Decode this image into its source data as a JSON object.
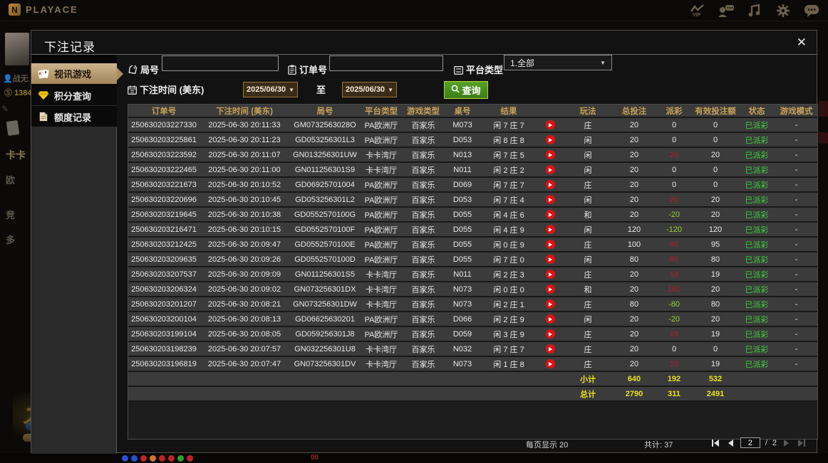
{
  "topbar": {
    "brand": "PLAYACE",
    "brand_mark": "N",
    "icons": [
      "vip-icon",
      "customer-service-icon",
      "music-icon",
      "settings-gear-icon",
      "chat-icon"
    ]
  },
  "background": {
    "username": "战无",
    "balance": "1384",
    "nav_labels": [
      "卡卡",
      "欧",
      "竞",
      "多"
    ],
    "promo_char": "大",
    "badge": "00",
    "chip_colors": [
      "#2b4fd4",
      "#2b4fd4",
      "#c42222",
      "#d4752b",
      "#c42222",
      "#c42222",
      "#2ba32b",
      "#c42222"
    ]
  },
  "modal": {
    "title": "下注记录",
    "close_label": "✕",
    "sidebar": [
      {
        "label": "视讯游戏",
        "active": true
      },
      {
        "label": "积分查询",
        "active": false
      },
      {
        "label": "额度记录",
        "active": false
      }
    ],
    "filters": {
      "round_label": "局号",
      "round_value": "",
      "order_label": "订单号",
      "order_value": "",
      "platform_label": "平台类型",
      "platform_value": "1.全部",
      "time_label": "下注时间 (美东)",
      "date_from": "2025/06/30",
      "to_label": "至",
      "date_to": "2025/06/30",
      "search_label": "查询"
    },
    "table": {
      "headers": [
        "订单号",
        "下注时间 (美东)",
        "局号",
        "平台类型",
        "游戏类型",
        "桌号",
        "结果",
        "",
        "玩法",
        "总投注",
        "派彩",
        "有效投注额",
        "状态",
        "游戏模式"
      ],
      "rows": [
        {
          "order": "250630203227330",
          "time": "2025-06-30 20:11:33",
          "round": "GM0732563028O",
          "platform": "PA欧洲厅",
          "game": "百家乐",
          "table": "M073",
          "result": "闲 7 庄 7",
          "bet": "庄",
          "total": "20",
          "payout": "0",
          "pc": "w",
          "valid": "0",
          "status": "已派彩",
          "mode": "-"
        },
        {
          "order": "250630203225861",
          "time": "2025-06-30 20:11:23",
          "round": "GD053256301L3",
          "platform": "PA欧洲厅",
          "game": "百家乐",
          "table": "D053",
          "result": "闲 8 庄 8",
          "bet": "闲",
          "total": "20",
          "payout": "0",
          "pc": "w",
          "valid": "0",
          "status": "已派彩",
          "mode": "-"
        },
        {
          "order": "250630203223592",
          "time": "2025-06-30 20:11:07",
          "round": "GN013256301UW",
          "platform": "卡卡湾厅",
          "game": "百家乐",
          "table": "N013",
          "result": "闲 7 庄 5",
          "bet": "闲",
          "total": "20",
          "payout": "20",
          "pc": "r",
          "valid": "20",
          "status": "已派彩",
          "mode": "-"
        },
        {
          "order": "250630203222465",
          "time": "2025-06-30 20:11:00",
          "round": "GN011256301S9",
          "platform": "卡卡湾厅",
          "game": "百家乐",
          "table": "N011",
          "result": "闲 2 庄 2",
          "bet": "闲",
          "total": "20",
          "payout": "0",
          "pc": "w",
          "valid": "0",
          "status": "已派彩",
          "mode": "-"
        },
        {
          "order": "250630203221673",
          "time": "2025-06-30 20:10:52",
          "round": "GD06925701004",
          "platform": "PA欧洲厅",
          "game": "百家乐",
          "table": "D069",
          "result": "闲 7 庄 7",
          "bet": "庄",
          "total": "20",
          "payout": "0",
          "pc": "w",
          "valid": "0",
          "status": "已派彩",
          "mode": "-"
        },
        {
          "order": "250630203220696",
          "time": "2025-06-30 20:10:45",
          "round": "GD053256301L2",
          "platform": "PA欧洲厅",
          "game": "百家乐",
          "table": "D053",
          "result": "闲 7 庄 4",
          "bet": "闲",
          "total": "20",
          "payout": "20",
          "pc": "r",
          "valid": "20",
          "status": "已派彩",
          "mode": "-"
        },
        {
          "order": "250630203219645",
          "time": "2025-06-30 20:10:38",
          "round": "GD0552570100G",
          "platform": "PA欧洲厅",
          "game": "百家乐",
          "table": "D055",
          "result": "闲 4 庄 6",
          "bet": "和",
          "total": "20",
          "payout": "-20",
          "pc": "g",
          "valid": "20",
          "status": "已派彩",
          "mode": "-"
        },
        {
          "order": "250630203216471",
          "time": "2025-06-30 20:10:15",
          "round": "GD0552570100F",
          "platform": "PA欧洲厅",
          "game": "百家乐",
          "table": "D055",
          "result": "闲 4 庄 9",
          "bet": "闲",
          "total": "120",
          "payout": "-120",
          "pc": "g",
          "valid": "120",
          "status": "已派彩",
          "mode": "-"
        },
        {
          "order": "250630203212425",
          "time": "2025-06-30 20:09:47",
          "round": "GD0552570100E",
          "platform": "PA欧洲厅",
          "game": "百家乐",
          "table": "D055",
          "result": "闲 0 庄 9",
          "bet": "庄",
          "total": "100",
          "payout": "95",
          "pc": "r",
          "valid": "95",
          "status": "已派彩",
          "mode": "-"
        },
        {
          "order": "250630203209635",
          "time": "2025-06-30 20:09:26",
          "round": "GD0552570100D",
          "platform": "PA欧洲厅",
          "game": "百家乐",
          "table": "D055",
          "result": "闲 7 庄 0",
          "bet": "闲",
          "total": "80",
          "payout": "80",
          "pc": "r",
          "valid": "80",
          "status": "已派彩",
          "mode": "-"
        },
        {
          "order": "250630203207537",
          "time": "2025-06-30 20:09:09",
          "round": "GN011256301S5",
          "platform": "卡卡湾厅",
          "game": "百家乐",
          "table": "N011",
          "result": "闲 2 庄 3",
          "bet": "庄",
          "total": "20",
          "payout": "19",
          "pc": "r",
          "valid": "19",
          "status": "已派彩",
          "mode": "-"
        },
        {
          "order": "250630203206324",
          "time": "2025-06-30 20:09:02",
          "round": "GN073256301DX",
          "platform": "卡卡湾厅",
          "game": "百家乐",
          "table": "N073",
          "result": "闲 0 庄 0",
          "bet": "和",
          "total": "20",
          "payout": "160",
          "pc": "r",
          "valid": "20",
          "status": "已派彩",
          "mode": "-"
        },
        {
          "order": "250630203201207",
          "time": "2025-06-30 20:08:21",
          "round": "GN073256301DW",
          "platform": "卡卡湾厅",
          "game": "百家乐",
          "table": "N073",
          "result": "闲 2 庄 1",
          "bet": "庄",
          "total": "80",
          "payout": "-80",
          "pc": "g",
          "valid": "80",
          "status": "已派彩",
          "mode": "-"
        },
        {
          "order": "250630203200104",
          "time": "2025-06-30 20:08:13",
          "round": "GD06625630201",
          "platform": "PA欧洲厅",
          "game": "百家乐",
          "table": "D066",
          "result": "闲 2 庄 9",
          "bet": "闲",
          "total": "20",
          "payout": "-20",
          "pc": "g",
          "valid": "20",
          "status": "已派彩",
          "mode": "-"
        },
        {
          "order": "250630203199104",
          "time": "2025-06-30 20:08:05",
          "round": "GD059256301J8",
          "platform": "PA欧洲厅",
          "game": "百家乐",
          "table": "D059",
          "result": "闲 3 庄 9",
          "bet": "庄",
          "total": "20",
          "payout": "19",
          "pc": "r",
          "valid": "19",
          "status": "已派彩",
          "mode": "-"
        },
        {
          "order": "250630203198239",
          "time": "2025-06-30 20:07:57",
          "round": "GN032256301U8",
          "platform": "卡卡湾厅",
          "game": "百家乐",
          "table": "N032",
          "result": "闲 7 庄 7",
          "bet": "庄",
          "total": "20",
          "payout": "0",
          "pc": "w",
          "valid": "0",
          "status": "已派彩",
          "mode": "-"
        },
        {
          "order": "250630203196819",
          "time": "2025-06-30 20:07:47",
          "round": "GN073256301DV",
          "platform": "卡卡湾厅",
          "game": "百家乐",
          "table": "N073",
          "result": "闲 1 庄 8",
          "bet": "庄",
          "total": "20",
          "payout": "19",
          "pc": "r",
          "valid": "19",
          "status": "已派彩",
          "mode": "-"
        }
      ],
      "subtotal": {
        "label": "小计",
        "total": "640",
        "payout": "192",
        "valid": "532"
      },
      "grandtotal": {
        "label": "总计",
        "total": "2790",
        "payout": "311",
        "valid": "2491"
      }
    },
    "footer": {
      "page_size_label": "每页显示 20",
      "total_label": "共计: 37",
      "page_value": "2",
      "page_sep": "/",
      "page_total": "2"
    }
  }
}
